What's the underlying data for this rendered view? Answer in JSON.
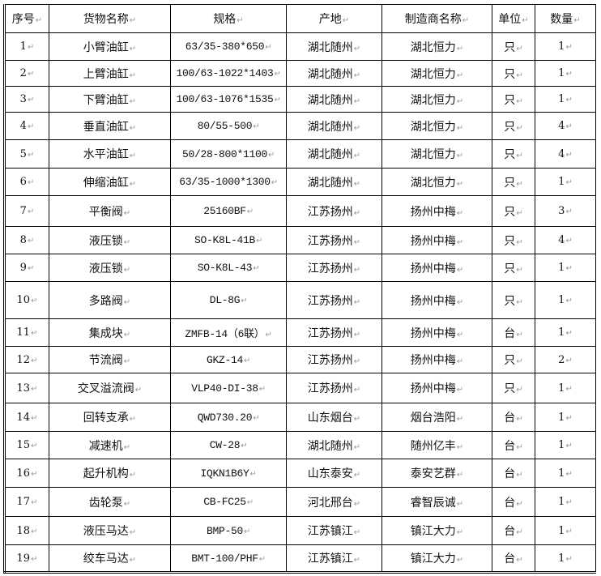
{
  "table": {
    "headers": [
      "序号",
      "货物名称",
      "规格",
      "产地",
      "制造商名称",
      "单位",
      "数量"
    ],
    "rows": [
      [
        "1",
        "小臂油缸",
        "63/35-380*650",
        "湖北随州",
        "湖北恒力",
        "只",
        "1"
      ],
      [
        "2",
        "上臂油缸",
        "100/63-1022*1403",
        "湖北随州",
        "湖北恒力",
        "只",
        "1"
      ],
      [
        "3",
        "下臂油缸",
        "100/63-1076*1535",
        "湖北随州",
        "湖北恒力",
        "只",
        "1"
      ],
      [
        "4",
        "垂直油缸",
        "80/55-500",
        "湖北随州",
        "湖北恒力",
        "只",
        "4"
      ],
      [
        "5",
        "水平油缸",
        "50/28-800*1100",
        "湖北随州",
        "湖北恒力",
        "只",
        "4"
      ],
      [
        "6",
        "伸缩油缸",
        "63/35-1000*1300",
        "湖北随州",
        "湖北恒力",
        "只",
        "1"
      ],
      [
        "7",
        "平衡阀",
        "25160BF",
        "江苏扬州",
        "扬州中梅",
        "只",
        "3"
      ],
      [
        "8",
        "液压锁",
        "SO-K8L-41B",
        "江苏扬州",
        "扬州中梅",
        "只",
        "4"
      ],
      [
        "9",
        "液压锁",
        "SO-K8L-43",
        "江苏扬州",
        "扬州中梅",
        "只",
        "1"
      ],
      [
        "10",
        "多路阀",
        "DL-8G",
        "江苏扬州",
        "扬州中梅",
        "只",
        "1"
      ],
      [
        "11",
        "集成块",
        "ZMFB-14（6联）",
        "江苏扬州",
        "扬州中梅",
        "台",
        "1"
      ],
      [
        "12",
        "节流阀",
        "GKZ-14",
        "江苏扬州",
        "扬州中梅",
        "只",
        "2"
      ],
      [
        "13",
        "交叉溢流阀",
        "VLP40-DI-38",
        "江苏扬州",
        "扬州中梅",
        "只",
        "1"
      ],
      [
        "14",
        "回转支承",
        "QWD730.20",
        "山东烟台",
        "烟台浩阳",
        "台",
        "1"
      ],
      [
        "15",
        "减速机",
        "CW-28",
        "湖北随州",
        "随州亿丰",
        "台",
        "1"
      ],
      [
        "16",
        "起升机构",
        "IQKN1B6Y",
        "山东泰安",
        "泰安艺群",
        "台",
        "1"
      ],
      [
        "17",
        "齿轮泵",
        "CB-FC25",
        "河北邢台",
        "睿智辰诚",
        "台",
        "1"
      ],
      [
        "18",
        "液压马达",
        "BMP-50",
        "江苏镇江",
        "镇江大力",
        "台",
        "1"
      ],
      [
        "19",
        "绞车马达",
        "BMT-100/PHF",
        "江苏镇江",
        "镇江大力",
        "台",
        "1"
      ]
    ]
  }
}
